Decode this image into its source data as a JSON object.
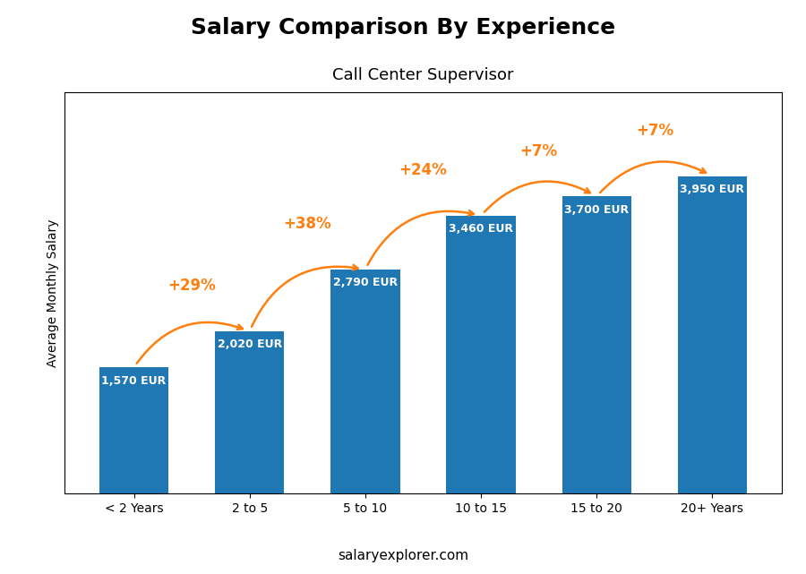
{
  "chart_data": {
    "type": "bar",
    "title": "Salary Comparison By Experience",
    "subtitle": "Call Center Supervisor",
    "ylabel": "Average Monthly Salary",
    "source": "salaryexplorer.com",
    "categories": [
      "< 2 Years",
      "2 to 5",
      "5 to 10",
      "10 to 15",
      "15 to 20",
      "20+ Years"
    ],
    "values": [
      1570,
      2020,
      2790,
      3460,
      3700,
      3950
    ],
    "value_labels": [
      "1,570 EUR",
      "2,020 EUR",
      "2,790 EUR",
      "3,460 EUR",
      "3,700 EUR",
      "3,950 EUR"
    ],
    "data_labels": true,
    "annotations": [
      null,
      "+29%",
      "+38%",
      "+24%",
      "+7%",
      "+7%"
    ],
    "ylim": [
      0,
      5000
    ],
    "tick_labels": "x"
  }
}
